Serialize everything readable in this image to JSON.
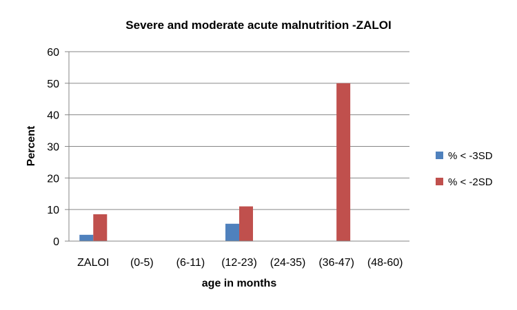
{
  "chart_data": {
    "type": "bar",
    "title": "Severe and moderate acute malnutrition -ZALOI",
    "xlabel": "age in months",
    "ylabel": "Percent",
    "ylim": [
      0,
      60
    ],
    "yticks": [
      0,
      10,
      20,
      30,
      40,
      50,
      60
    ],
    "grid": true,
    "legend_position": "right",
    "categories": [
      "ZALOI",
      "(0-5)",
      "(6-11)",
      "(12-23)",
      "(24-35)",
      "(36-47)",
      "(48-60)"
    ],
    "series": [
      {
        "name": "% < -3SD",
        "color": "#4F81BD",
        "values": [
          2,
          0,
          0,
          5.5,
          0,
          0,
          0
        ]
      },
      {
        "name": "% < -2SD",
        "color": "#C0504D",
        "values": [
          8.5,
          0,
          0,
          11,
          0,
          50,
          0
        ]
      }
    ]
  }
}
